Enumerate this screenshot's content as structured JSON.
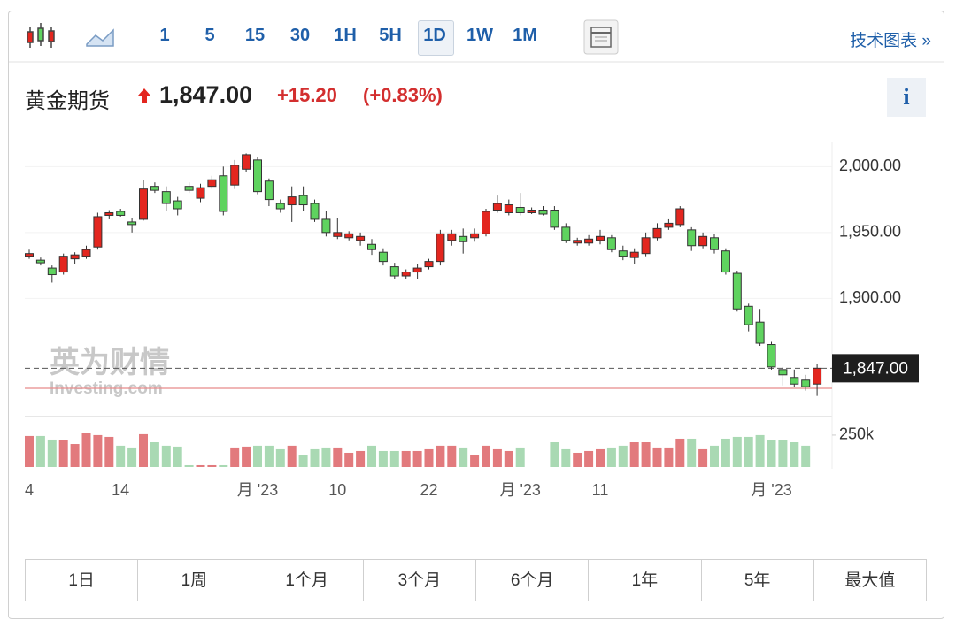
{
  "toolbar": {
    "intervals": [
      "1",
      "5",
      "15",
      "30",
      "1H",
      "5H",
      "1D",
      "1W",
      "1M"
    ],
    "selected": "1D",
    "link": "技术图表 »"
  },
  "header": {
    "name": "黄金期货",
    "price": "1,847.00",
    "change": "+15.20",
    "change_pct": "(+0.83%)"
  },
  "info": "i",
  "watermark": {
    "cn": "英为财情",
    "en": "Investing.com"
  },
  "ranges": [
    "1日",
    "1周",
    "1个月",
    "3个月",
    "6个月",
    "1年",
    "5年",
    "最大值"
  ],
  "chart_data": {
    "type": "candlestick",
    "categories": [
      "4",
      null,
      null,
      null,
      null,
      null,
      null,
      null,
      "14",
      null,
      null,
      null,
      null,
      null,
      null,
      null,
      null,
      null,
      null,
      null,
      "月 '23",
      null,
      null,
      null,
      null,
      null,
      null,
      "10",
      null,
      null,
      null,
      null,
      null,
      null,
      null,
      "22",
      null,
      null,
      null,
      null,
      null,
      null,
      null,
      "月 '23",
      null,
      null,
      null,
      null,
      null,
      null,
      "11",
      null,
      null,
      null,
      null,
      null,
      null,
      null,
      null,
      null,
      null,
      null,
      null,
      null,
      null,
      "月 '23",
      null,
      null,
      null,
      null
    ],
    "open": [
      1932,
      1929,
      1923,
      1920,
      1930,
      1932,
      1939,
      1963,
      1966,
      1958,
      1960,
      1985,
      1981,
      1974,
      1985,
      1976,
      1985,
      1993,
      1986,
      1998,
      2005,
      1989,
      1972,
      1971,
      1978,
      1972,
      1960,
      1947,
      1946,
      1944,
      1941,
      1935,
      1924,
      1917,
      1920,
      1924,
      1928,
      1944,
      1947,
      1946,
      1949,
      1967,
      1965,
      1969,
      1965,
      1967,
      1967,
      1954,
      1942,
      1942,
      1944,
      1946,
      1936,
      1931,
      1934,
      1946,
      1954,
      1956,
      1952,
      1940,
      1946,
      1936,
      1919,
      1894,
      1882,
      1865,
      1846,
      1840,
      1838,
      1835
    ],
    "high": [
      1937,
      1931,
      1925,
      1934,
      1935,
      1940,
      1965,
      1967,
      1968,
      1961,
      1990,
      1988,
      1985,
      1977,
      1988,
      1987,
      1993,
      2000,
      2005,
      2010,
      2007,
      1991,
      1975,
      1985,
      1985,
      1975,
      1966,
      1961,
      1951,
      1950,
      1945,
      1938,
      1927,
      1922,
      1926,
      1930,
      1952,
      1952,
      1953,
      1953,
      1968,
      1978,
      1975,
      1980,
      1969,
      1970,
      1970,
      1957,
      1946,
      1948,
      1952,
      1948,
      1940,
      1938,
      1950,
      1957,
      1960,
      1970,
      1954,
      1950,
      1949,
      1938,
      1921,
      1896,
      1892,
      1867,
      1848,
      1846,
      1842,
      1850
    ],
    "low": [
      1930,
      1925,
      1912,
      1918,
      1926,
      1930,
      1937,
      1960,
      1962,
      1950,
      1959,
      1980,
      1966,
      1963,
      1980,
      1973,
      1983,
      1963,
      1983,
      1996,
      1979,
      1970,
      1965,
      1958,
      1966,
      1958,
      1947,
      1945,
      1944,
      1940,
      1933,
      1925,
      1915,
      1915,
      1915,
      1922,
      1925,
      1940,
      1934,
      1943,
      1947,
      1965,
      1963,
      1963,
      1964,
      1963,
      1952,
      1942,
      1940,
      1940,
      1941,
      1935,
      1929,
      1926,
      1932,
      1944,
      1952,
      1954,
      1936,
      1938,
      1934,
      1918,
      1890,
      1875,
      1864,
      1846,
      1834,
      1833,
      1830,
      1826
    ],
    "close": [
      1934,
      1927,
      1918,
      1932,
      1933,
      1937,
      1962,
      1965,
      1963,
      1956,
      1983,
      1982,
      1972,
      1968,
      1982,
      1984,
      1990,
      1966,
      2001,
      2009,
      1981,
      1975,
      1968,
      1977,
      1971,
      1960,
      1950,
      1950,
      1949,
      1947,
      1937,
      1928,
      1917,
      1920,
      1923,
      1928,
      1949,
      1949,
      1943,
      1949,
      1966,
      1972,
      1971,
      1965,
      1967,
      1964,
      1954,
      1944,
      1944,
      1945,
      1947,
      1937,
      1932,
      1935,
      1946,
      1953,
      1957,
      1968,
      1940,
      1947,
      1937,
      1920,
      1892,
      1880,
      1866,
      1848,
      1842,
      1835,
      1833,
      1847
    ],
    "volume": [
      243000,
      243000,
      215000,
      208000,
      180000,
      264000,
      250000,
      236000,
      167000,
      153000,
      257000,
      194000,
      167000,
      160000,
      14000,
      14000,
      14000,
      14000,
      153000,
      160000,
      167000,
      167000,
      139000,
      167000,
      97000,
      139000,
      153000,
      153000,
      111000,
      125000,
      167000,
      125000,
      125000,
      125000,
      125000,
      139000,
      167000,
      167000,
      153000,
      97000,
      167000,
      139000,
      125000,
      153000,
      null,
      null,
      194000,
      139000,
      111000,
      125000,
      139000,
      153000,
      167000,
      194000,
      194000,
      153000,
      153000,
      222000,
      222000,
      139000,
      167000,
      222000,
      236000,
      236000,
      250000,
      208000,
      208000,
      194000,
      167000,
      null
    ],
    "up_color": "#e3261f",
    "down_color": "#5fd35f",
    "up_volume_color": "#e27a7d",
    "down_volume_color": "#a9d9b3",
    "ylim": [
      1811,
      2019
    ],
    "yticks": [
      {
        "value": 1900,
        "label": "1,900.00"
      },
      {
        "value": 1950,
        "label": "1,950.00"
      },
      {
        "value": 2000,
        "label": "2,000.00"
      }
    ],
    "y2lim": [
      0,
      395000
    ],
    "y2ticks": [
      {
        "value": 250000,
        "label": "250k"
      }
    ],
    "last_price": 1847,
    "prev_close": 1831.8
  }
}
